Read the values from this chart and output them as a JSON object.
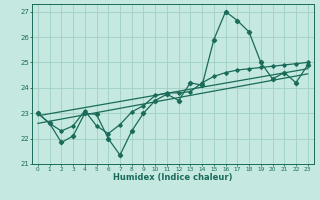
{
  "xlabel": "Humidex (Indice chaleur)",
  "xlim": [
    -0.5,
    23.5
  ],
  "ylim": [
    21.0,
    27.3
  ],
  "yticks": [
    21,
    22,
    23,
    24,
    25,
    26,
    27
  ],
  "xticks": [
    0,
    1,
    2,
    3,
    4,
    5,
    6,
    7,
    8,
    9,
    10,
    11,
    12,
    13,
    14,
    15,
    16,
    17,
    18,
    19,
    20,
    21,
    22,
    23
  ],
  "bg_color": "#c5e8e0",
  "grid_color": "#9fcfc5",
  "line_color": "#1a6b5a",
  "line1_x": [
    0,
    1,
    2,
    3,
    4,
    5,
    6,
    7,
    8,
    9,
    10,
    11,
    12,
    13,
    14,
    15,
    16,
    17,
    18,
    19,
    20,
    21,
    22,
    23
  ],
  "line1_y": [
    23.0,
    22.6,
    21.85,
    22.1,
    23.0,
    22.95,
    22.0,
    21.35,
    22.3,
    23.0,
    23.5,
    23.75,
    23.5,
    24.2,
    24.1,
    25.9,
    27.0,
    26.65,
    26.2,
    25.0,
    24.35,
    24.6,
    24.2,
    24.9
  ],
  "line2_x": [
    0,
    1,
    2,
    3,
    4,
    5,
    6,
    7,
    8,
    9,
    10,
    11,
    12,
    13,
    14,
    15,
    16,
    17,
    18,
    19,
    20,
    21,
    22,
    23
  ],
  "line2_y": [
    23.0,
    22.6,
    22.3,
    22.5,
    23.1,
    22.5,
    22.2,
    22.55,
    23.05,
    23.3,
    23.7,
    23.8,
    23.8,
    23.85,
    24.2,
    24.45,
    24.6,
    24.7,
    24.75,
    24.8,
    24.85,
    24.9,
    24.95,
    25.0
  ],
  "line3_x": [
    0,
    23
  ],
  "line3_y": [
    22.9,
    24.75
  ],
  "line4_x": [
    0,
    23
  ],
  "line4_y": [
    22.6,
    24.55
  ]
}
